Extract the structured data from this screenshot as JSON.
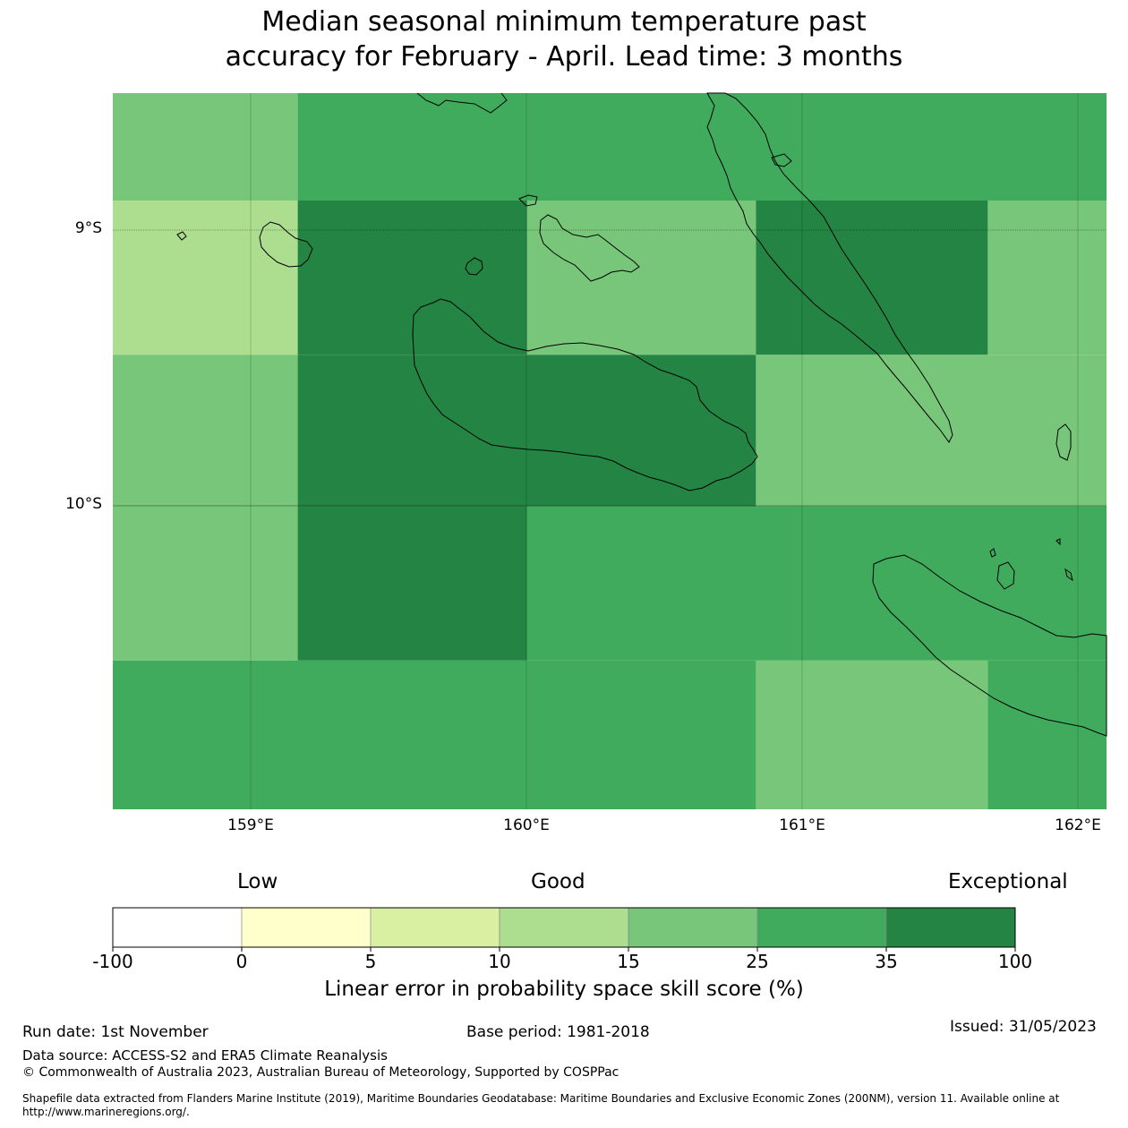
{
  "title": {
    "line1": "Median seasonal minimum temperature past",
    "line2": "accuracy for February - April. Lead time: 3 months"
  },
  "map": {
    "lat_labels": [
      "9°S",
      "10°S"
    ],
    "lon_labels": [
      "159°E",
      "160°E",
      "161°E",
      "162°E"
    ],
    "lon_range": [
      158.5,
      162.1
    ],
    "lat_range": [
      -8.5,
      -11.1
    ],
    "grid_cells": [
      {
        "lon": [
          158.5,
          159.17
        ],
        "lat": [
          -8.5,
          -8.89
        ],
        "category": "15-25"
      },
      {
        "lon": [
          159.17,
          162.1
        ],
        "lat": [
          -8.5,
          -8.89
        ],
        "category": "25-35"
      },
      {
        "lon": [
          158.5,
          159.17
        ],
        "lat": [
          -8.89,
          -9.45
        ],
        "category": "10-15"
      },
      {
        "lon": [
          159.17,
          160.0
        ],
        "lat": [
          -8.89,
          -9.45
        ],
        "category": "35-100"
      },
      {
        "lon": [
          160.0,
          160.83
        ],
        "lat": [
          -8.89,
          -9.45
        ],
        "category": "15-25"
      },
      {
        "lon": [
          160.83,
          161.67
        ],
        "lat": [
          -8.89,
          -9.45
        ],
        "category": "35-100"
      },
      {
        "lon": [
          161.67,
          162.1
        ],
        "lat": [
          -8.89,
          -9.45
        ],
        "category": "15-25"
      },
      {
        "lon": [
          158.5,
          159.17
        ],
        "lat": [
          -9.45,
          -10.0
        ],
        "category": "15-25"
      },
      {
        "lon": [
          159.17,
          160.83
        ],
        "lat": [
          -9.45,
          -10.0
        ],
        "category": "35-100"
      },
      {
        "lon": [
          160.83,
          162.1
        ],
        "lat": [
          -9.45,
          -10.0
        ],
        "category": "15-25"
      },
      {
        "lon": [
          158.5,
          159.17
        ],
        "lat": [
          -10.0,
          -10.56
        ],
        "category": "15-25"
      },
      {
        "lon": [
          159.17,
          160.0
        ],
        "lat": [
          -10.0,
          -10.56
        ],
        "category": "35-100"
      },
      {
        "lon": [
          160.0,
          162.1
        ],
        "lat": [
          -10.0,
          -10.56
        ],
        "category": "25-35"
      },
      {
        "lon": [
          158.5,
          160.83
        ],
        "lat": [
          -10.56,
          -11.1
        ],
        "category": "25-35"
      },
      {
        "lon": [
          160.83,
          161.67
        ],
        "lat": [
          -10.56,
          -11.1
        ],
        "category": "15-25"
      },
      {
        "lon": [
          161.67,
          162.1
        ],
        "lat": [
          -10.56,
          -11.1
        ],
        "category": "25-35"
      }
    ]
  },
  "legend": {
    "low": "Low",
    "good": "Good",
    "exceptional": "Exceptional",
    "ticks": [
      "-100",
      "0",
      "5",
      "10",
      "15",
      "25",
      "35",
      "100"
    ],
    "bins": [
      {
        "key": "-100-0",
        "color": "#ffffff"
      },
      {
        "key": "0-5",
        "color": "#ffffcc"
      },
      {
        "key": "5-10",
        "color": "#d9f0a3"
      },
      {
        "key": "10-15",
        "color": "#addd8e"
      },
      {
        "key": "15-25",
        "color": "#78c679"
      },
      {
        "key": "25-35",
        "color": "#41ab5d"
      },
      {
        "key": "35-100",
        "color": "#238443"
      }
    ],
    "label": "Linear error in probability space skill score (%)"
  },
  "footer": {
    "run_date": "Run date: 1st November",
    "base_period": "Base period: 1981-2018",
    "issued": "Issued: 31/05/2023",
    "data_source": "Data source: ACCESS-S2 and ERA5 Climate Reanalysis",
    "copyright": "© Commonwealth of Australia 2023, Australian Bureau of Meteorology, Supported by COSPPac",
    "shapefile": "Shapefile data extracted from Flanders Marine Institute (2019), Maritime Boundaries Geodatabase: Maritime Boundaries and Exclusive Economic Zones (200NM), version 11. Available online at http://www.marineregions.org/."
  }
}
